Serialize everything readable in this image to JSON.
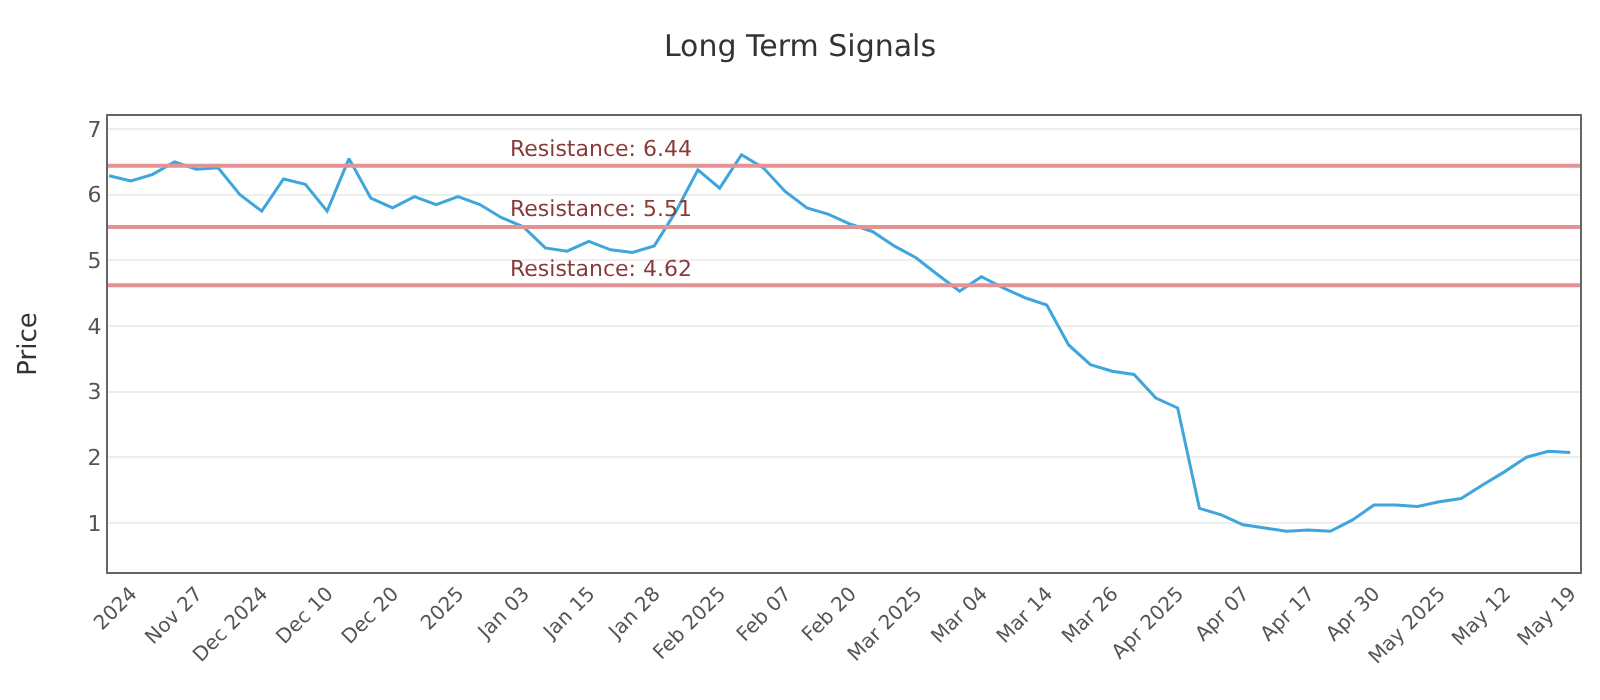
{
  "chart_data": {
    "type": "line",
    "title": "Long Term Signals",
    "ylabel": "Price",
    "categories": [
      null,
      "2024",
      null,
      null,
      "Nov 27",
      null,
      null,
      "Dec 2024",
      null,
      null,
      "Dec 10",
      null,
      null,
      "Dec 20",
      null,
      null,
      "2025",
      null,
      null,
      "Jan 03",
      null,
      null,
      "Jan 15",
      null,
      null,
      "Jan 28",
      null,
      null,
      "Feb 2025",
      null,
      null,
      "Feb 07",
      null,
      null,
      "Feb 20",
      null,
      null,
      "Mar 2025",
      null,
      null,
      "Mar 04",
      null,
      null,
      "Mar 14",
      null,
      null,
      "Mar 26",
      null,
      null,
      "Apr 2025",
      null,
      null,
      "Apr 07",
      null,
      null,
      "Apr 17",
      null,
      null,
      "Apr 30",
      null,
      null,
      "May 2025",
      null,
      null,
      "May 12",
      null,
      null,
      "May 19"
    ],
    "series": [
      {
        "color": "#3ea6dc",
        "values": [
          6.29,
          6.21,
          6.31,
          6.5,
          6.39,
          6.41,
          6.0,
          5.75,
          6.24,
          6.16,
          5.75,
          6.55,
          5.95,
          5.8,
          5.97,
          5.85,
          5.97,
          5.85,
          5.65,
          5.51,
          5.19,
          5.14,
          5.29,
          5.16,
          5.12,
          5.22,
          5.75,
          6.38,
          6.1,
          6.61,
          6.41,
          6.05,
          5.8,
          5.7,
          5.55,
          5.44,
          5.22,
          5.04,
          4.78,
          4.53,
          4.75,
          4.58,
          4.43,
          4.32,
          3.71,
          3.41,
          3.31,
          3.26,
          2.9,
          2.75,
          1.22,
          1.12,
          0.97,
          0.92,
          0.87,
          0.89,
          0.87,
          1.04,
          1.27,
          1.27,
          1.25,
          1.32,
          1.37,
          1.58,
          1.78,
          2.0,
          2.09,
          2.07
        ]
      }
    ],
    "ylim": [
      0.25,
      7.2
    ],
    "yticks": [
      1,
      2,
      3,
      4,
      5,
      6,
      7
    ],
    "grid": "y",
    "marker": "none",
    "line_style": "solid",
    "ref_lines": [
      {
        "axis": "y",
        "value": 6.44,
        "label": "Resistance: 6.44",
        "color": "#e39393"
      },
      {
        "axis": "y",
        "value": 5.51,
        "label": "Resistance: 5.51",
        "color": "#e39393"
      },
      {
        "axis": "y",
        "value": 4.62,
        "label": "Resistance: 4.62",
        "color": "#e39393"
      }
    ]
  }
}
